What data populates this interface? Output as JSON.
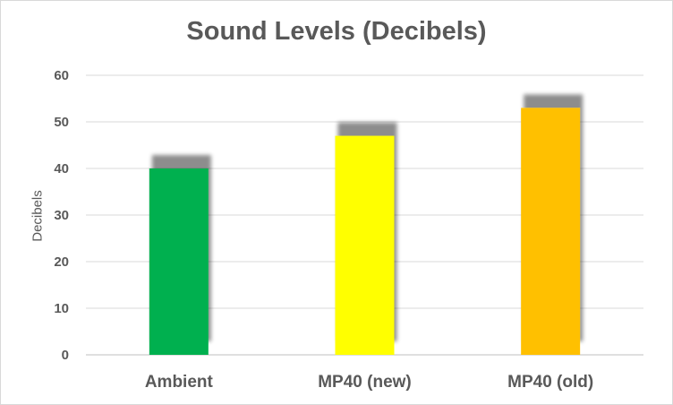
{
  "chart_data": {
    "type": "bar",
    "title": "Sound Levels (Decibels)",
    "ylabel": "Decibels",
    "xlabel": "",
    "categories": [
      "Ambient",
      "MP40 (new)",
      "MP40 (old)"
    ],
    "values": [
      40,
      47,
      53
    ],
    "colors": [
      "#00b050",
      "#ffff00",
      "#ffc000"
    ],
    "ylim": [
      0,
      60
    ],
    "yticks": [
      0,
      10,
      20,
      30,
      40,
      50,
      60
    ],
    "grid": true,
    "legend": "none"
  }
}
